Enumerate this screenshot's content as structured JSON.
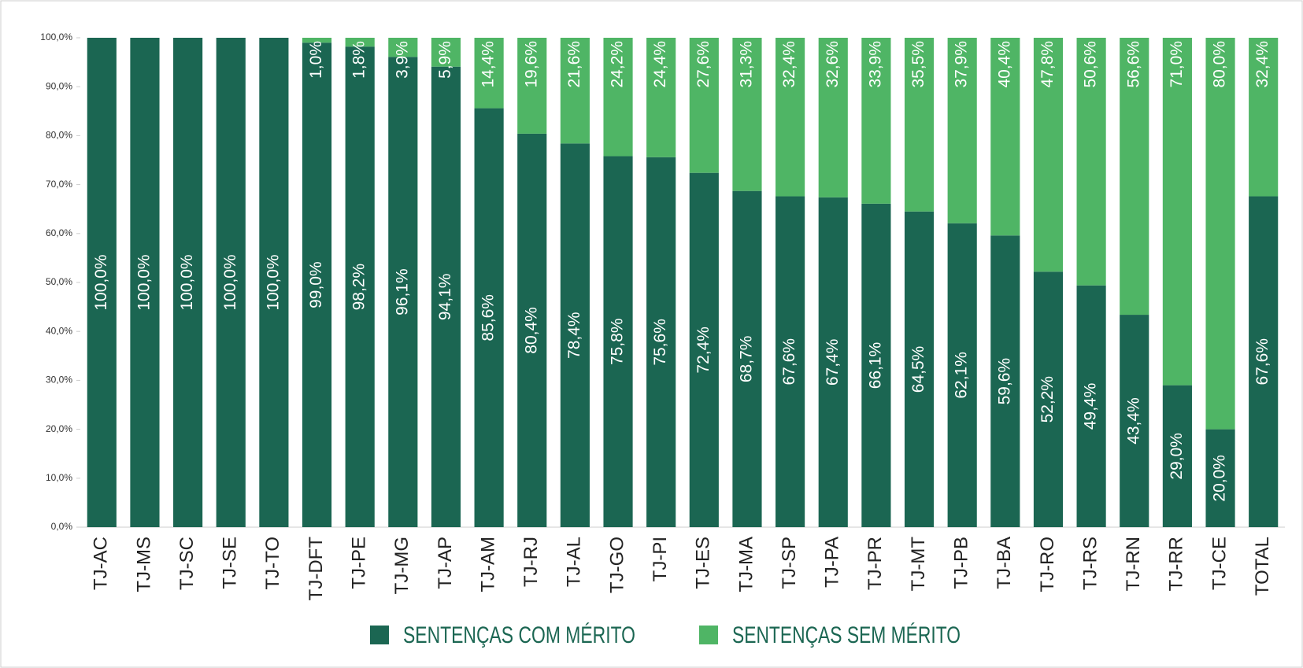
{
  "chart_data": {
    "type": "stacked-bar",
    "categories": [
      "TJ-AC",
      "TJ-MS",
      "TJ-SC",
      "TJ-SE",
      "TJ-TO",
      "TJ-DFT",
      "TJ-PE",
      "TJ-MG",
      "TJ-AP",
      "TJ-AM",
      "TJ-RJ",
      "TJ-AL",
      "TJ-GO",
      "TJ-PI",
      "TJ-ES",
      "TJ-MA",
      "TJ-SP",
      "TJ-PA",
      "TJ-PR",
      "TJ-MT",
      "TJ-PB",
      "TJ-BA",
      "TJ-RO",
      "TJ-RS",
      "TJ-RN",
      "TJ-RR",
      "TJ-CE",
      "TOTAL"
    ],
    "series": [
      {
        "name": "SENTENÇAS COM MÉRITO",
        "color": "#1b6652",
        "values": [
          100,
          100,
          100,
          100,
          100,
          99,
          98.2,
          96.1,
          94.1,
          85.6,
          80.4,
          78.4,
          75.8,
          75.6,
          72.4,
          68.7,
          67.6,
          67.4,
          66.1,
          64.5,
          62.1,
          59.6,
          52.2,
          49.4,
          43.4,
          29,
          20,
          67.6
        ],
        "value_labels": [
          "100,0%",
          "100,0%",
          "100,0%",
          "100,0%",
          "100,0%",
          "99,0%",
          "98,2%",
          "96,1%",
          "94,1%",
          "85,6%",
          "80,4%",
          "78,4%",
          "75,8%",
          "75,6%",
          "72,4%",
          "68,7%",
          "67,6%",
          "67,4%",
          "66,1%",
          "64,5%",
          "62,1%",
          "59,6%",
          "52,2%",
          "49,4%",
          "43,4%",
          "29,0%",
          "20,0%",
          "67,6%"
        ]
      },
      {
        "name": "SENTENÇAS SEM MÉRITO",
        "color": "#4fb565",
        "values": [
          0,
          0,
          0,
          0,
          0,
          1,
          1.8,
          3.9,
          5.9,
          14.4,
          19.6,
          21.6,
          24.2,
          24.4,
          27.6,
          31.3,
          32.4,
          32.6,
          33.9,
          35.5,
          37.9,
          40.4,
          47.8,
          50.6,
          56.6,
          71,
          80,
          32.4
        ],
        "value_labels": [
          null,
          null,
          null,
          null,
          null,
          "1,0%",
          "1,8%",
          "3,9%",
          "5,9%",
          "14,4%",
          "19,6%",
          "21,6%",
          "24,2%",
          "24,4%",
          "27,6%",
          "31,3%",
          "32,4%",
          "32,6%",
          "33,9%",
          "35,5%",
          "37,9%",
          "40,4%",
          "47,8%",
          "50,6%",
          "56,6%",
          "71,0%",
          "80,0%",
          "32,4%"
        ]
      }
    ],
    "ylim": [
      0,
      100
    ],
    "yticks": [
      {
        "value": 0,
        "label": "0,0%"
      },
      {
        "value": 10,
        "label": "10,0%"
      },
      {
        "value": 20,
        "label": "20,0%"
      },
      {
        "value": 30,
        "label": "30,0%"
      },
      {
        "value": 40,
        "label": "40,0%"
      },
      {
        "value": 50,
        "label": "50,0%"
      },
      {
        "value": 60,
        "label": "60,0%"
      },
      {
        "value": 70,
        "label": "70,0%"
      },
      {
        "value": 80,
        "label": "80,0%"
      },
      {
        "value": 90,
        "label": "90,0%"
      },
      {
        "value": 100,
        "label": "100,0%"
      }
    ],
    "legend": "bottom"
  }
}
